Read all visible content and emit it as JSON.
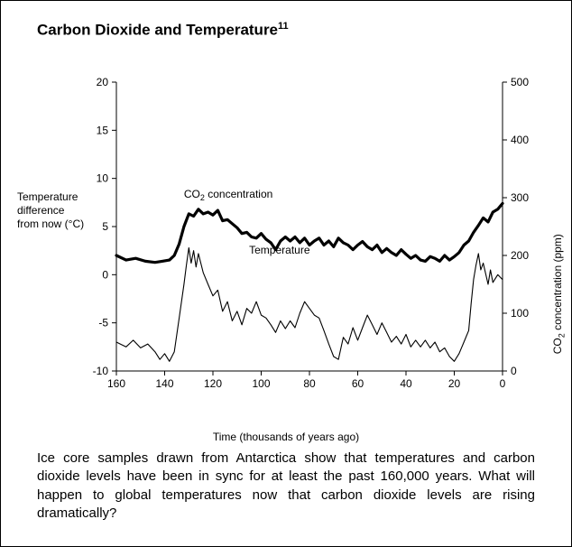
{
  "title": "Carbon Dioxide and Temperature",
  "title_sup": "11",
  "chart": {
    "type": "line",
    "background_color": "#ffffff",
    "axis_color": "#000000",
    "tick_font_size": 12,
    "label_font_size": 12,
    "x": {
      "label": "Time (thousands of years ago)",
      "lim": [
        160,
        0
      ],
      "ticks": [
        160,
        140,
        120,
        100,
        80,
        60,
        40,
        20,
        0
      ]
    },
    "y_left": {
      "label_lines": [
        "Temperature",
        "difference",
        "from now (°C)"
      ],
      "lim": [
        -10,
        20
      ],
      "ticks": [
        -10,
        -5,
        0,
        5,
        10,
        15,
        20
      ]
    },
    "y_right": {
      "label": "CO₂ concentration (ppm)",
      "lim": [
        0,
        500
      ],
      "ticks": [
        0,
        100,
        200,
        300,
        400,
        500
      ]
    },
    "series": {
      "co2": {
        "label": "CO₂ concentration",
        "label_pos_x": 132,
        "label_pos_y_right": 300,
        "axis": "right",
        "color": "#000000",
        "line_width": 3.2,
        "points": [
          [
            160,
            200
          ],
          [
            156,
            192
          ],
          [
            152,
            195
          ],
          [
            148,
            190
          ],
          [
            144,
            188
          ],
          [
            141,
            190
          ],
          [
            138,
            192
          ],
          [
            136,
            200
          ],
          [
            134,
            220
          ],
          [
            132,
            250
          ],
          [
            130,
            272
          ],
          [
            128,
            268
          ],
          [
            126,
            280
          ],
          [
            124,
            272
          ],
          [
            122,
            275
          ],
          [
            120,
            270
          ],
          [
            118,
            278
          ],
          [
            116,
            260
          ],
          [
            114,
            262
          ],
          [
            112,
            255
          ],
          [
            110,
            248
          ],
          [
            108,
            238
          ],
          [
            106,
            240
          ],
          [
            104,
            232
          ],
          [
            102,
            230
          ],
          [
            100,
            238
          ],
          [
            98,
            228
          ],
          [
            96,
            222
          ],
          [
            94,
            210
          ],
          [
            92,
            225
          ],
          [
            90,
            232
          ],
          [
            88,
            225
          ],
          [
            86,
            232
          ],
          [
            84,
            222
          ],
          [
            82,
            230
          ],
          [
            80,
            218
          ],
          [
            78,
            225
          ],
          [
            76,
            230
          ],
          [
            74,
            218
          ],
          [
            72,
            225
          ],
          [
            70,
            215
          ],
          [
            68,
            230
          ],
          [
            66,
            222
          ],
          [
            64,
            218
          ],
          [
            62,
            210
          ],
          [
            60,
            218
          ],
          [
            58,
            224
          ],
          [
            56,
            215
          ],
          [
            54,
            210
          ],
          [
            52,
            218
          ],
          [
            50,
            205
          ],
          [
            48,
            212
          ],
          [
            46,
            205
          ],
          [
            44,
            200
          ],
          [
            42,
            210
          ],
          [
            40,
            202
          ],
          [
            38,
            195
          ],
          [
            36,
            200
          ],
          [
            34,
            192
          ],
          [
            32,
            190
          ],
          [
            30,
            198
          ],
          [
            28,
            195
          ],
          [
            26,
            190
          ],
          [
            24,
            200
          ],
          [
            22,
            192
          ],
          [
            20,
            198
          ],
          [
            18,
            205
          ],
          [
            16,
            218
          ],
          [
            14,
            225
          ],
          [
            12,
            240
          ],
          [
            10,
            252
          ],
          [
            8,
            265
          ],
          [
            6,
            258
          ],
          [
            4,
            275
          ],
          [
            2,
            280
          ],
          [
            0,
            290
          ]
        ]
      },
      "temp": {
        "label": "Temperature",
        "label_pos_x": 105,
        "label_pos_y_left": 2.2,
        "axis": "left",
        "color": "#000000",
        "line_width": 1.1,
        "points": [
          [
            160,
            -7.0
          ],
          [
            156,
            -7.5
          ],
          [
            153,
            -6.8
          ],
          [
            150,
            -7.6
          ],
          [
            147,
            -7.2
          ],
          [
            144,
            -8.0
          ],
          [
            142,
            -8.8
          ],
          [
            140,
            -8.2
          ],
          [
            138,
            -9.0
          ],
          [
            136,
            -8.0
          ],
          [
            134,
            -4.5
          ],
          [
            132,
            -1.0
          ],
          [
            131,
            1.0
          ],
          [
            130,
            2.8
          ],
          [
            129,
            1.2
          ],
          [
            128,
            2.5
          ],
          [
            127,
            0.8
          ],
          [
            126,
            2.2
          ],
          [
            124,
            0.2
          ],
          [
            122,
            -1.0
          ],
          [
            120,
            -2.2
          ],
          [
            118,
            -1.6
          ],
          [
            116,
            -3.8
          ],
          [
            114,
            -2.8
          ],
          [
            112,
            -4.8
          ],
          [
            110,
            -3.8
          ],
          [
            108,
            -5.2
          ],
          [
            106,
            -3.5
          ],
          [
            104,
            -4.0
          ],
          [
            102,
            -2.8
          ],
          [
            100,
            -4.2
          ],
          [
            98,
            -4.5
          ],
          [
            96,
            -5.2
          ],
          [
            94,
            -6.0
          ],
          [
            92,
            -4.8
          ],
          [
            90,
            -5.6
          ],
          [
            88,
            -4.8
          ],
          [
            86,
            -5.5
          ],
          [
            84,
            -4.0
          ],
          [
            82,
            -2.8
          ],
          [
            80,
            -3.5
          ],
          [
            78,
            -4.2
          ],
          [
            76,
            -4.5
          ],
          [
            74,
            -5.8
          ],
          [
            72,
            -7.2
          ],
          [
            70,
            -8.5
          ],
          [
            68,
            -8.8
          ],
          [
            66,
            -6.5
          ],
          [
            64,
            -7.2
          ],
          [
            62,
            -5.5
          ],
          [
            60,
            -6.8
          ],
          [
            58,
            -5.5
          ],
          [
            56,
            -4.2
          ],
          [
            54,
            -5.2
          ],
          [
            52,
            -6.2
          ],
          [
            50,
            -5.0
          ],
          [
            48,
            -6.0
          ],
          [
            46,
            -7.0
          ],
          [
            44,
            -6.4
          ],
          [
            42,
            -7.2
          ],
          [
            40,
            -6.2
          ],
          [
            38,
            -7.5
          ],
          [
            36,
            -6.8
          ],
          [
            34,
            -7.5
          ],
          [
            32,
            -6.8
          ],
          [
            30,
            -7.6
          ],
          [
            28,
            -7.0
          ],
          [
            26,
            -8.0
          ],
          [
            24,
            -7.6
          ],
          [
            22,
            -8.5
          ],
          [
            20,
            -9.0
          ],
          [
            18,
            -8.2
          ],
          [
            16,
            -7.0
          ],
          [
            14,
            -5.8
          ],
          [
            13,
            -3.0
          ],
          [
            12,
            -0.5
          ],
          [
            11,
            1.0
          ],
          [
            10,
            2.2
          ],
          [
            9,
            0.5
          ],
          [
            8,
            1.2
          ],
          [
            6,
            -1.0
          ],
          [
            5,
            0.5
          ],
          [
            4,
            -0.8
          ],
          [
            2,
            0.0
          ],
          [
            0,
            -0.5
          ]
        ]
      }
    }
  },
  "caption": "Ice core samples drawn from Antarctica show that temperatures and carbon dioxide levels have been in sync for at least the past 160,000 years. What will happen to global temperatures now that carbon dioxide levels are rising dramatically?"
}
